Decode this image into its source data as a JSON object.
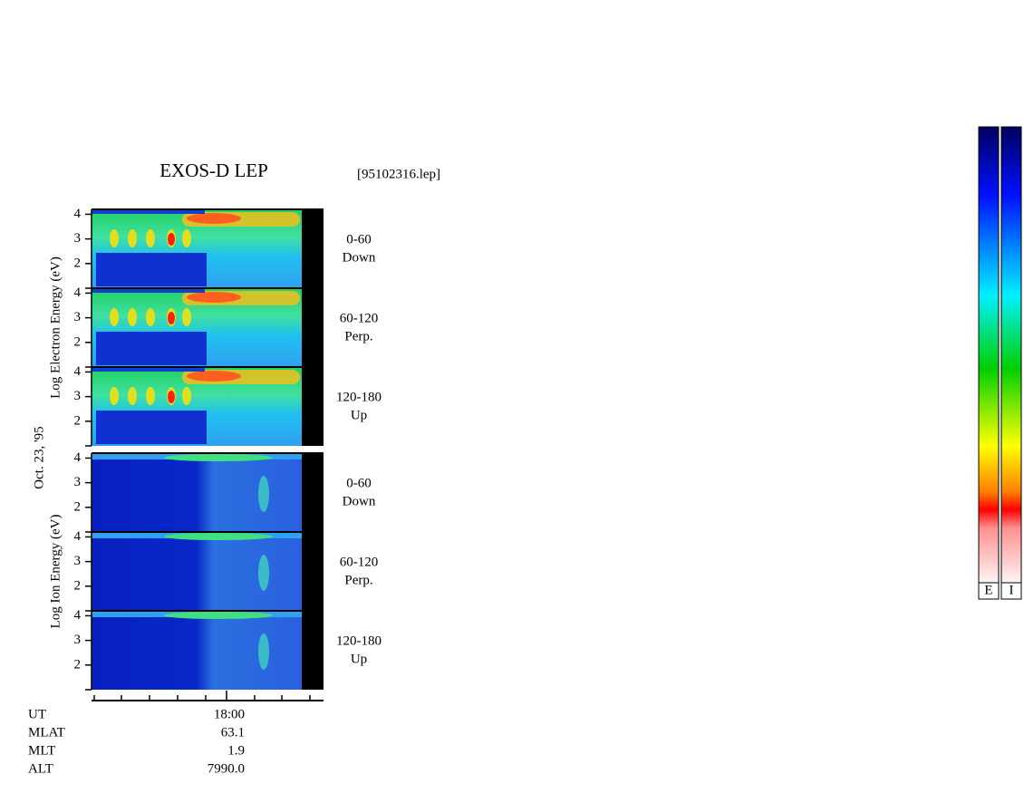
{
  "chart_data": {
    "type": "spectrogram",
    "title": "EXOS-D LEP",
    "file": "[95102316.lep]",
    "date": "Oct. 23, '95",
    "ylim": [
      1,
      4.2
    ],
    "yticks": [
      2,
      3,
      4
    ],
    "groups": [
      {
        "ylabel": "Log Electron Energy (eV)",
        "panels": [
          {
            "angle": "0-60",
            "direction": "Down"
          },
          {
            "angle": "60-120",
            "direction": "Perp."
          },
          {
            "angle": "120-180",
            "direction": "Up"
          }
        ]
      },
      {
        "ylabel": "Log Ion Energy (eV)",
        "panels": [
          {
            "angle": "0-60",
            "direction": "Down"
          },
          {
            "angle": "60-120",
            "direction": "Perp."
          },
          {
            "angle": "120-180",
            "direction": "Up"
          }
        ]
      }
    ],
    "x_rows": [
      {
        "name": "UT",
        "value": "18:00"
      },
      {
        "name": "MLAT",
        "value": "63.1"
      },
      {
        "name": "MLT",
        "value": "1.9"
      },
      {
        "name": "ALT",
        "value": "7990.0"
      }
    ],
    "colorbars": [
      "E",
      "I"
    ]
  }
}
